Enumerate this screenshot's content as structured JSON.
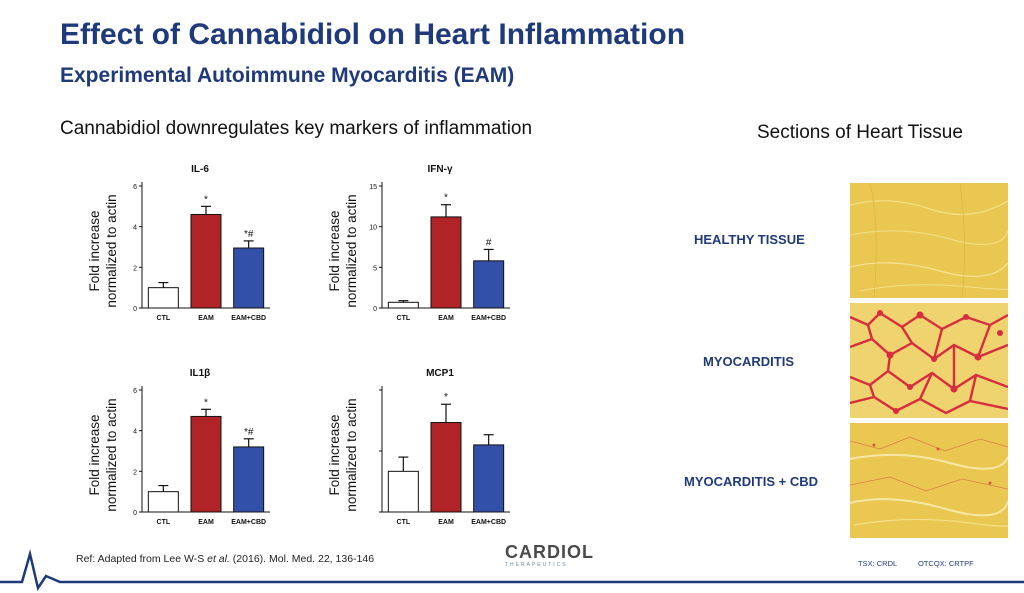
{
  "header": {
    "title": "Effect of Cannabidiol on Heart Inflammation",
    "subtitle": "Experimental Autoimmune Myocarditis (EAM)",
    "lead": "Cannabidiol downregulates key markers of inflammation",
    "sections_heading": "Sections of Heart Tissue"
  },
  "chart_data": [
    {
      "type": "bar",
      "title": "IL-6",
      "categories": [
        "CTL",
        "EAM",
        "EAM+CBD"
      ],
      "values": [
        1.0,
        4.6,
        2.95
      ],
      "errors": [
        0.25,
        0.4,
        0.35
      ],
      "markers": [
        "",
        "*",
        "*#"
      ],
      "colors": [
        "#ffffff",
        "#b02428",
        "#3350a8"
      ],
      "ylabel": [
        "Fold increase",
        "normalized to actin"
      ],
      "ylim": [
        0,
        6
      ],
      "yticks": [
        0,
        2,
        4,
        6
      ]
    },
    {
      "type": "bar",
      "title": "IFN-γ",
      "categories": [
        "CTL",
        "EAM",
        "EAM+CBD"
      ],
      "values": [
        0.7,
        11.2,
        5.8
      ],
      "errors": [
        0.2,
        1.5,
        1.4
      ],
      "markers": [
        "",
        "*",
        "#"
      ],
      "colors": [
        "#ffffff",
        "#b02428",
        "#3350a8"
      ],
      "ylabel": [
        "Fold increase",
        "normalized to actin"
      ],
      "ylim": [
        0,
        15
      ],
      "yticks": [
        0,
        5,
        10,
        15
      ]
    },
    {
      "type": "bar",
      "title": "IL1β",
      "categories": [
        "CTL",
        "EAM",
        "EAM+CBD"
      ],
      "values": [
        1.0,
        4.7,
        3.2
      ],
      "errors": [
        0.3,
        0.35,
        0.4
      ],
      "markers": [
        "",
        "*",
        "*#"
      ],
      "colors": [
        "#ffffff",
        "#b02428",
        "#3350a8"
      ],
      "ylabel": [
        "Fold increase",
        "normalized to actin"
      ],
      "ylim": [
        0,
        6
      ],
      "yticks": [
        0,
        2,
        4,
        6
      ]
    },
    {
      "type": "bar",
      "title": "MCP1",
      "categories": [
        "CTL",
        "EAM",
        "EAM+CBD"
      ],
      "values": [
        1.0,
        2.2,
        1.65
      ],
      "errors": [
        0.35,
        0.45,
        0.25
      ],
      "markers": [
        "",
        "*",
        ""
      ],
      "colors": [
        "#ffffff",
        "#b02428",
        "#3350a8"
      ],
      "ylabel": [
        "Fold increase",
        "normalized to actin"
      ],
      "ylim": [
        0,
        3
      ],
      "yticks": []
    }
  ],
  "tissue_sections": [
    {
      "label": "HEALTHY TISSUE"
    },
    {
      "label": "MYOCARDITIS"
    },
    {
      "label": "MYOCARDITIS + CBD"
    }
  ],
  "footer": {
    "ref_prefix": "Ref: Adapted from Lee W-S ",
    "ref_italic": "et al.",
    "ref_suffix": " (2016). Mol. Med. 22, 136-146",
    "logo_word": "CARDIOL",
    "logo_tagline": "THERAPEUTICS",
    "ticker_tsx": "TSX: CRDL",
    "ticker_otcqx": "OTCQX: CRTPF"
  },
  "colors": {
    "brand_blue": "#1f3a7a",
    "eam_red": "#b02428",
    "cbd_blue": "#3350a8",
    "tissue_yellow": "#e9c750",
    "stain_red": "#d62d3f"
  }
}
